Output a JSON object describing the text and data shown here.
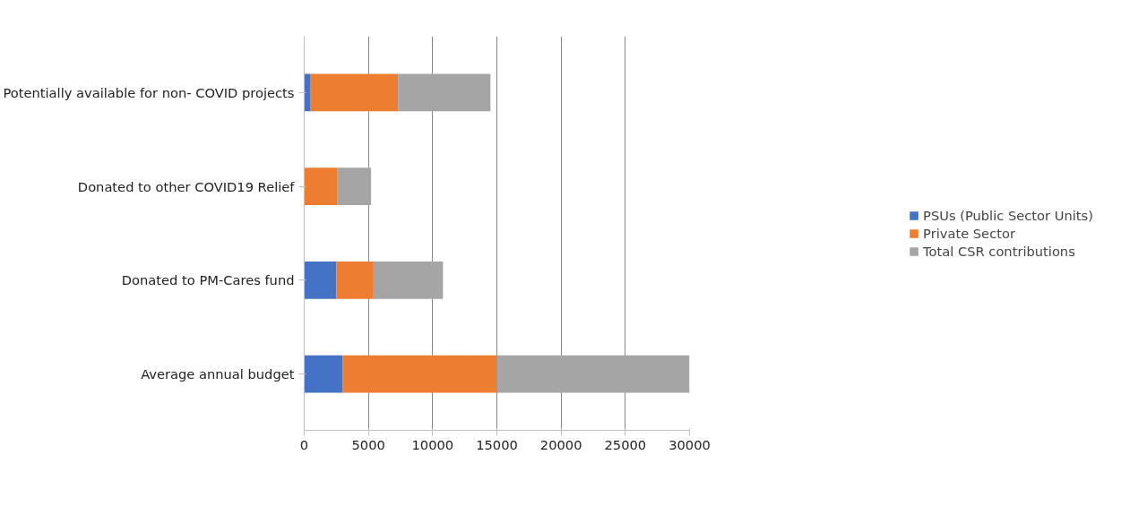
{
  "chart_data": {
    "type": "bar",
    "orientation": "horizontal",
    "stacked": true,
    "categories": [
      "Potentially available for non- COVID projects",
      "Donated to other COVID19 Relief",
      "Donated to PM-Cares fund",
      "Average annual budget"
    ],
    "series": [
      {
        "name": "PSUs (Public Sector Units)",
        "color": "#4472c4",
        "values": [
          500,
          0,
          2500,
          3000
        ]
      },
      {
        "name": "Private Sector",
        "color": "#ed7d31",
        "values": [
          6800,
          2600,
          2900,
          12000
        ]
      },
      {
        "name": "Total CSR contributions",
        "color": "#a5a5a5",
        "values": [
          7200,
          2600,
          5400,
          15000
        ]
      }
    ],
    "xlim": [
      0,
      30000
    ],
    "xticks": [
      0,
      5000,
      10000,
      15000,
      20000,
      25000,
      30000
    ],
    "grid": "x",
    "legend": "right"
  }
}
